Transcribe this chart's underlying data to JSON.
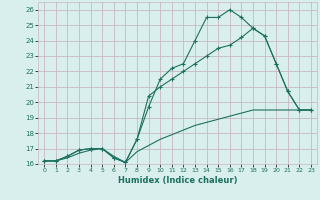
{
  "xlabel": "Humidex (Indice chaleur)",
  "xlim": [
    -0.5,
    23.5
  ],
  "ylim": [
    16,
    26.5
  ],
  "yticks": [
    16,
    17,
    18,
    19,
    20,
    21,
    22,
    23,
    24,
    25,
    26
  ],
  "xticks": [
    0,
    1,
    2,
    3,
    4,
    5,
    6,
    7,
    8,
    9,
    10,
    11,
    12,
    13,
    14,
    15,
    16,
    17,
    18,
    19,
    20,
    21,
    22,
    23
  ],
  "bg_color": "#d8efed",
  "grid_color": "#c8b8c0",
  "line_color": "#1e7060",
  "line1_x": [
    0,
    1,
    2,
    3,
    4,
    5,
    6,
    7,
    8,
    9,
    10,
    11,
    12,
    13,
    14,
    15,
    16,
    17,
    18,
    19,
    20,
    21,
    22,
    23
  ],
  "line1_y": [
    16.2,
    16.2,
    16.5,
    16.9,
    17.0,
    17.0,
    16.4,
    16.1,
    17.6,
    19.7,
    21.5,
    22.2,
    22.5,
    24.0,
    25.5,
    25.5,
    26.0,
    25.5,
    24.8,
    24.3,
    22.5,
    20.7,
    19.5,
    19.5
  ],
  "line2_x": [
    0,
    1,
    2,
    3,
    4,
    5,
    6,
    7,
    8,
    9,
    10,
    11,
    12,
    13,
    14,
    15,
    16,
    17,
    18,
    19,
    20,
    21,
    22,
    23
  ],
  "line2_y": [
    16.2,
    16.2,
    16.5,
    16.9,
    17.0,
    17.0,
    16.4,
    16.1,
    17.6,
    20.4,
    21.0,
    21.5,
    22.0,
    22.5,
    23.0,
    23.5,
    23.7,
    24.2,
    24.8,
    24.3,
    22.5,
    20.7,
    19.5,
    19.5
  ],
  "line3_x": [
    0,
    1,
    2,
    3,
    4,
    5,
    6,
    7,
    8,
    9,
    10,
    11,
    12,
    13,
    14,
    15,
    16,
    17,
    18,
    19,
    20,
    21,
    22,
    23
  ],
  "line3_y": [
    16.2,
    16.2,
    16.4,
    16.7,
    16.9,
    17.0,
    16.5,
    16.1,
    16.8,
    17.2,
    17.6,
    17.9,
    18.2,
    18.5,
    18.7,
    18.9,
    19.1,
    19.3,
    19.5,
    19.5,
    19.5,
    19.5,
    19.5,
    19.5
  ]
}
